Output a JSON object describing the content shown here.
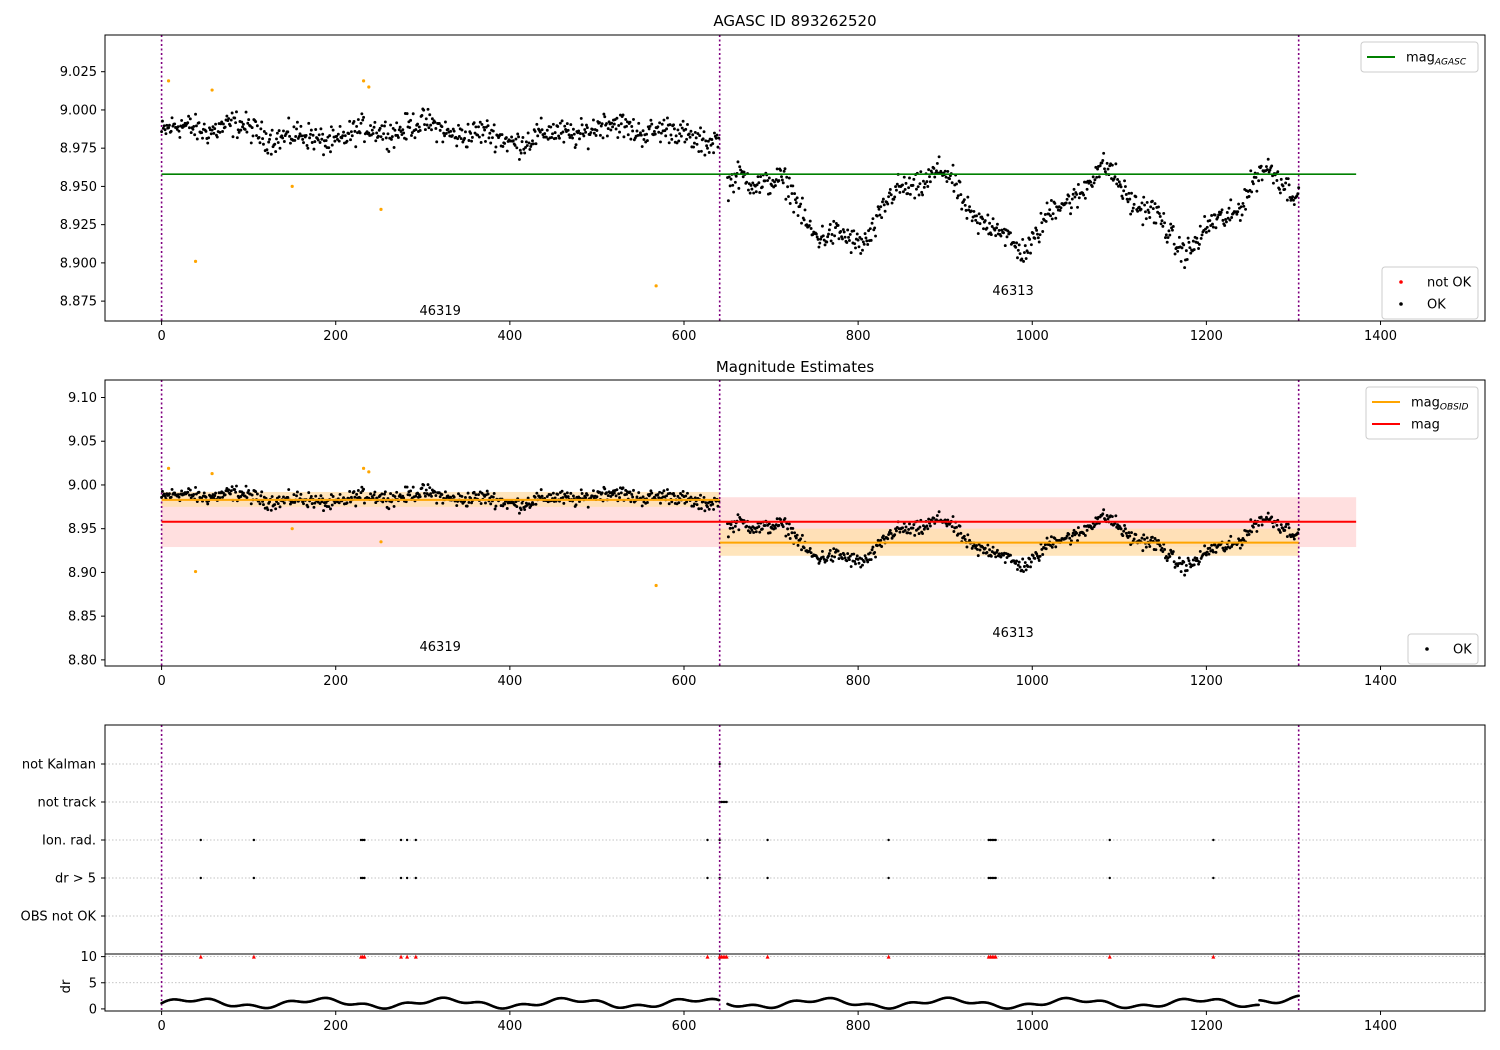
{
  "figure": {
    "colors": {
      "ok": "#000000",
      "not_ok": "#ff0000",
      "outlier": "#ffa500",
      "mag_agasc": "#008000",
      "mag_obsid": "#ffa500",
      "mag": "#ff0000",
      "obsid_boundary": "#800080",
      "mag_band": "#ffd9d9",
      "obsid_band": "#ffe1b0"
    }
  },
  "chart_data": [
    {
      "type": "scatter",
      "title": "AGASC ID 893262520",
      "xlim": [
        -65,
        1520
      ],
      "ylim": [
        8.862,
        9.049
      ],
      "xticks": [
        0,
        200,
        400,
        600,
        800,
        1000,
        1200,
        1400
      ],
      "xtick_labels": [
        "0",
        "200",
        "400",
        "600",
        "800",
        "1000",
        "1200",
        "1400"
      ],
      "yticks": [
        8.875,
        8.9,
        8.925,
        8.95,
        8.975,
        9.0,
        9.025
      ],
      "ytick_labels": [
        "8.875",
        "8.900",
        "8.925",
        "8.950",
        "8.975",
        "9.000",
        "9.025"
      ],
      "hlines": [
        {
          "name": "mag_AGASC",
          "y": 8.958,
          "xrange": [
            0,
            1372
          ],
          "color": "green"
        }
      ],
      "vlines": [
        0,
        641,
        1306
      ],
      "obsid_labels": [
        {
          "text": "46319",
          "x": 320,
          "y": 8.866
        },
        {
          "text": "46313",
          "x": 978,
          "y": 8.879
        }
      ],
      "segments": [
        {
          "x": [
            0,
            641
          ],
          "profile": "obs1",
          "base": 8.985
        },
        {
          "x": [
            641,
            1306
          ],
          "profile": "obs2",
          "base": 8.935
        }
      ],
      "outliers": [
        {
          "x": 8,
          "y": 9.019
        },
        {
          "x": 39,
          "y": 8.901
        },
        {
          "x": 58,
          "y": 9.013
        },
        {
          "x": 150,
          "y": 8.95
        },
        {
          "x": 232,
          "y": 9.019
        },
        {
          "x": 238,
          "y": 9.015
        },
        {
          "x": 252,
          "y": 8.935
        },
        {
          "x": 568,
          "y": 8.885
        }
      ],
      "legends": [
        {
          "placement": "top-right",
          "entries": [
            {
              "label": "mag",
              "sub": "AGASC",
              "kind": "line",
              "color": "green"
            }
          ]
        },
        {
          "placement": "bottom-right",
          "entries": [
            {
              "label": "not OK",
              "kind": "dot",
              "color": "red"
            },
            {
              "label": "OK",
              "kind": "dot",
              "color": "black"
            }
          ]
        }
      ]
    },
    {
      "type": "scatter",
      "title": "Magnitude Estimates",
      "xlim": [
        -65,
        1520
      ],
      "ylim": [
        8.793,
        9.12
      ],
      "xticks": [
        0,
        200,
        400,
        600,
        800,
        1000,
        1200,
        1400
      ],
      "xtick_labels": [
        "0",
        "200",
        "400",
        "600",
        "800",
        "1000",
        "1200",
        "1400"
      ],
      "yticks": [
        8.8,
        8.85,
        8.9,
        8.95,
        9.0,
        9.05,
        9.1
      ],
      "ytick_labels": [
        "8.80",
        "8.85",
        "8.90",
        "8.95",
        "9.00",
        "9.05",
        "9.10"
      ],
      "hlines": [
        {
          "name": "mag",
          "y": 8.958,
          "xrange": [
            0,
            1372
          ],
          "band": [
            8.929,
            8.986
          ],
          "color": "red"
        },
        {
          "name": "mag_OBSID 46319",
          "y": 8.983,
          "xrange": [
            0,
            641
          ],
          "band": [
            8.975,
            8.992
          ],
          "color": "orange"
        },
        {
          "name": "mag_OBSID 46313",
          "y": 8.934,
          "xrange": [
            641,
            1306
          ],
          "band": [
            8.919,
            8.95
          ],
          "color": "orange"
        }
      ],
      "vlines": [
        0,
        641,
        1306
      ],
      "obsid_labels": [
        {
          "text": "46319",
          "x": 320,
          "y": 8.81
        },
        {
          "text": "46313",
          "x": 978,
          "y": 8.826
        }
      ],
      "legends": [
        {
          "placement": "top-right",
          "entries": [
            {
              "label": "mag",
              "sub": "OBSID",
              "kind": "line",
              "color": "orange"
            },
            {
              "label": "mag",
              "kind": "line",
              "color": "red"
            }
          ]
        },
        {
          "placement": "bottom-right",
          "entries": [
            {
              "label": "OK",
              "kind": "dot",
              "color": "black"
            }
          ]
        }
      ]
    },
    {
      "type": "scatter",
      "title": "",
      "xlim": [
        -65,
        1520
      ],
      "categories": [
        "not Kalman",
        "not track",
        "Ion. rad.",
        "dr > 5",
        "OBS not OK"
      ],
      "flags": {
        "not Kalman": [
          641
        ],
        "not track": [
          641,
          643,
          645,
          647,
          649
        ],
        "Ion. rad.": [
          45,
          106,
          229,
          231,
          233,
          275,
          282,
          292,
          627,
          641,
          696,
          835,
          950,
          952,
          954,
          956,
          958,
          1089,
          1208
        ],
        "dr > 5": [
          45,
          106,
          229,
          231,
          233,
          275,
          282,
          292,
          627,
          641,
          696,
          835,
          950,
          952,
          954,
          956,
          958,
          1089,
          1208
        ],
        "OBS not OK": []
      },
      "vlines": [
        0,
        641,
        1306
      ]
    },
    {
      "type": "scatter",
      "title": "",
      "ylabel": "dr",
      "xlim": [
        -65,
        1520
      ],
      "ylim": [
        -0.4,
        10.5
      ],
      "xticks": [
        0,
        200,
        400,
        600,
        800,
        1000,
        1200,
        1400
      ],
      "xtick_labels": [
        "0",
        "200",
        "400",
        "600",
        "800",
        "1000",
        "1200",
        "1400"
      ],
      "yticks": [
        0,
        5,
        10
      ],
      "ytick_labels": [
        "0",
        "5",
        "10"
      ],
      "clipped_markers_y": 10,
      "clipped_markers_x": [
        45,
        106,
        229,
        231,
        233,
        275,
        282,
        292,
        627,
        641,
        643,
        645,
        647,
        649,
        696,
        835,
        950,
        952,
        954,
        956,
        958,
        1089,
        1208
      ],
      "vlines": [
        0,
        641,
        1306
      ]
    }
  ]
}
